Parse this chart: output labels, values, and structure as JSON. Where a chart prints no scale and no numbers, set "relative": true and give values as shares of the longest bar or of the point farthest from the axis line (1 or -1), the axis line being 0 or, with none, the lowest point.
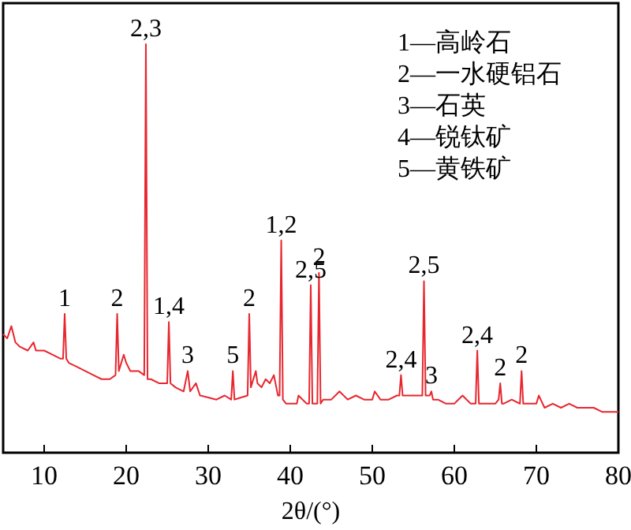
{
  "chart_data": {
    "type": "line",
    "xlabel": "2θ/(°)",
    "relative": true,
    "xlim": [
      5,
      80
    ],
    "xticks": [
      10,
      20,
      30,
      40,
      50,
      60,
      70,
      80
    ],
    "grid": false,
    "annotations": [
      "1—高岭石",
      "2—一水硬铝石",
      "3—石英",
      "4—锐钛矿",
      "5—黄铁矿",
      {
        "text": "1",
        "x": 12.5,
        "y": 0.34
      },
      {
        "text": "2",
        "x": 18.9,
        "y": 0.34
      },
      {
        "text": "2,3",
        "x": 22.4,
        "y": 1
      },
      {
        "text": "1,4",
        "x": 25.2,
        "y": 0.32
      },
      {
        "text": "3",
        "x": 27.5,
        "y": 0.2
      },
      {
        "text": "5",
        "x": 33,
        "y": 0.2
      },
      {
        "text": "2",
        "x": 35,
        "y": 0.34
      },
      {
        "text": "1,2",
        "x": 38.9,
        "y": 0.52
      },
      {
        "text": "2,5",
        "x": 42.5,
        "y": 0.41
      },
      {
        "text": "2",
        "x": 43.5,
        "y": 0.44
      },
      {
        "text": "2,4",
        "x": 53.5,
        "y": 0.19
      },
      {
        "text": "2,5",
        "x": 56.3,
        "y": 0.42
      },
      {
        "text": "3",
        "x": 57.2,
        "y": 0.15
      },
      {
        "text": "2,4",
        "x": 62.8,
        "y": 0.25
      },
      {
        "text": "2",
        "x": 65.6,
        "y": 0.17
      },
      {
        "text": "2",
        "x": 68.2,
        "y": 0.2
      }
    ],
    "series": [
      {
        "color": "#e8262e",
        "x": [
          5,
          5.5,
          6,
          6.5,
          7,
          8,
          8.7,
          9,
          10,
          11,
          12,
          12.3,
          12.5,
          12.7,
          13,
          14,
          15,
          16,
          17,
          18,
          18.7,
          18.9,
          19.1,
          19.7,
          20,
          20.5,
          21,
          21.5,
          22.2,
          22.4,
          22.6,
          23,
          24,
          25,
          25.2,
          25.4,
          26,
          27,
          27.5,
          27.8,
          28.5,
          29,
          30,
          31,
          32,
          32.8,
          33,
          33.2,
          34,
          34.8,
          35,
          35.2,
          35.8,
          36,
          36.5,
          37,
          37.5,
          38,
          38.5,
          38.7,
          38.9,
          39.1,
          39.5,
          40,
          40.8,
          41,
          42,
          42.3,
          42.5,
          42.7,
          43.3,
          43.5,
          43.7,
          44,
          45,
          46,
          47,
          48,
          49,
          50,
          50.3,
          51,
          52,
          53,
          53.3,
          53.5,
          53.7,
          54,
          55,
          56,
          56.1,
          56.3,
          56.5,
          57,
          57.2,
          57.4,
          58,
          59,
          60,
          61,
          62,
          62.6,
          62.8,
          63,
          64,
          65,
          65.4,
          65.6,
          65.8,
          66,
          67,
          68,
          68.2,
          68.4,
          69,
          70,
          70.3,
          71,
          72,
          73,
          74,
          75,
          76,
          77,
          78,
          79,
          80
        ],
        "values": [
          0.29,
          0.28,
          0.31,
          0.27,
          0.26,
          0.25,
          0.27,
          0.25,
          0.25,
          0.24,
          0.23,
          0.23,
          0.34,
          0.23,
          0.22,
          0.21,
          0.2,
          0.19,
          0.18,
          0.18,
          0.19,
          0.34,
          0.2,
          0.24,
          0.22,
          0.2,
          0.2,
          0.2,
          0.19,
          1,
          0.18,
          0.18,
          0.17,
          0.17,
          0.32,
          0.17,
          0.16,
          0.15,
          0.2,
          0.15,
          0.17,
          0.14,
          0.135,
          0.13,
          0.14,
          0.13,
          0.2,
          0.13,
          0.135,
          0.14,
          0.34,
          0.16,
          0.2,
          0.17,
          0.16,
          0.18,
          0.17,
          0.19,
          0.14,
          0.14,
          0.52,
          0.13,
          0.12,
          0.12,
          0.12,
          0.14,
          0.12,
          0.12,
          0.41,
          0.12,
          0.12,
          0.44,
          0.12,
          0.13,
          0.13,
          0.15,
          0.13,
          0.14,
          0.13,
          0.13,
          0.15,
          0.13,
          0.13,
          0.14,
          0.14,
          0.19,
          0.14,
          0.14,
          0.14,
          0.14,
          0.14,
          0.42,
          0.14,
          0.14,
          0.15,
          0.13,
          0.13,
          0.12,
          0.12,
          0.14,
          0.12,
          0.12,
          0.25,
          0.12,
          0.12,
          0.12,
          0.13,
          0.17,
          0.12,
          0.12,
          0.13,
          0.12,
          0.2,
          0.12,
          0.12,
          0.12,
          0.14,
          0.11,
          0.12,
          0.11,
          0.12,
          0.11,
          0.11,
          0.11,
          0.1,
          0.1,
          0.1
        ]
      }
    ]
  }
}
